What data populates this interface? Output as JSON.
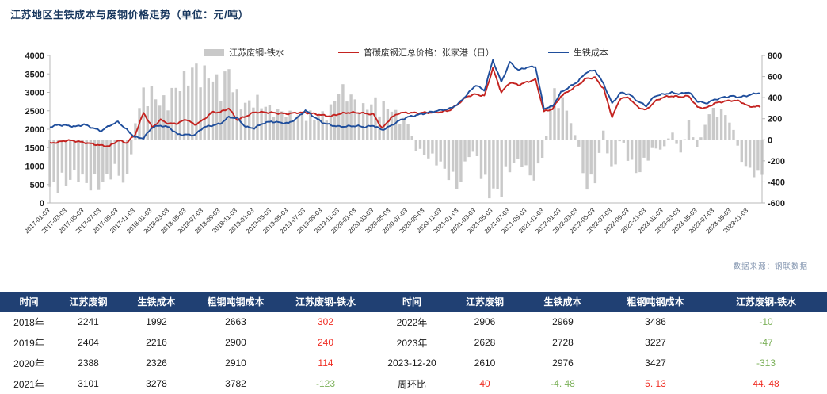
{
  "title": "江苏地区生铁成本与废钢价格走势（单位：元/吨）",
  "source": "数据来源：钢联数据",
  "chart_data": {
    "type": "line+bar",
    "title": "江苏地区生铁成本与废钢价格走势（单位：元/吨）",
    "legend": [
      {
        "label": "江苏废钢-铁水",
        "type": "bar",
        "color": "#C9C9C9",
        "axis": "right"
      },
      {
        "label": "普碳废钢汇总价格：张家港（日）",
        "type": "line",
        "color": "#C42320",
        "axis": "left"
      },
      {
        "label": "生铁成本",
        "type": "line",
        "color": "#1F4E9C",
        "axis": "left"
      }
    ],
    "left_axis": {
      "min": 0,
      "max": 4000,
      "step": 500,
      "ticks": [
        4000,
        3500,
        3000,
        2500,
        2000,
        1500,
        1000,
        500,
        0
      ]
    },
    "right_axis": {
      "min": -600,
      "max": 800,
      "step": 200,
      "ticks": [
        800,
        600,
        400,
        200,
        0,
        -200,
        -400,
        -600
      ]
    },
    "x_labels": [
      "2017-01-03",
      "2017-03-03",
      "2017-05-03",
      "2017-07-03",
      "2017-09-03",
      "2017-11-03",
      "2018-01-03",
      "2018-03-03",
      "2018-05-03",
      "2018-07-03",
      "2018-09-03",
      "2018-11-03",
      "2019-01-03",
      "2019-03-03",
      "2019-05-03",
      "2019-07-03",
      "2019-09-03",
      "2019-11-03",
      "2020-01-03",
      "2020-03-03",
      "2020-05-03",
      "2020-07-03",
      "2020-09-03",
      "2020-11-03",
      "2021-01-03",
      "2021-03-03",
      "2021-05-03",
      "2021-07-03",
      "2021-09-03",
      "2021-11-03",
      "2022-01-03",
      "2022-03-03",
      "2022-05-03",
      "2022-07-03",
      "2022-09-03",
      "2022-11-03",
      "2023-01-03",
      "2023-03-03",
      "2023-05-03",
      "2023-07-03",
      "2023-09-03",
      "2023-11-03"
    ],
    "months_start": "2017-01",
    "series": {
      "spread": {
        "name": "江苏废钢-铁水",
        "axis": "right",
        "color": "#C9C9C9",
        "monthly": [
          -430,
          -410,
          -370,
          -320,
          -360,
          -430,
          -400,
          -310,
          -280,
          -420,
          150,
          420,
          420,
          320,
          380,
          480,
          560,
          640,
          600,
          560,
          480,
          620,
          380,
          300,
          380,
          300,
          280,
          250,
          230,
          210,
          230,
          210,
          230,
          280,
          460,
          420,
          320,
          280,
          340,
          300,
          280,
          200,
          150,
          -80,
          -130,
          -180,
          -220,
          -350,
          -430,
          -150,
          -100,
          -430,
          -470,
          -450,
          -250,
          -180,
          -280,
          -350,
          -100,
          430,
          380,
          200,
          -50,
          -430,
          -350,
          100,
          -380,
          50,
          -200,
          -300,
          -180,
          -60,
          -100,
          80,
          -120,
          150,
          -100,
          180,
          280,
          250,
          150,
          -150,
          -280,
          -313
        ]
      },
      "scrap_price": {
        "name": "普碳废钢汇总价格：张家港（日）",
        "axis": "left",
        "color": "#C42320",
        "monthly": [
          1620,
          1650,
          1700,
          1680,
          1640,
          1600,
          1560,
          1540,
          1700,
          1630,
          1850,
          2450,
          2050,
          2250,
          2150,
          2160,
          2270,
          2120,
          2250,
          2460,
          2460,
          2570,
          2250,
          2350,
          2460,
          2460,
          2450,
          2430,
          2420,
          2450,
          2450,
          2420,
          2380,
          2350,
          2420,
          2450,
          2450,
          2430,
          2400,
          2020,
          2300,
          2440,
          2450,
          2440,
          2450,
          2450,
          2470,
          2520,
          2700,
          2890,
          2950,
          2900,
          3650,
          3000,
          3270,
          3200,
          3280,
          3350,
          2480,
          2550,
          2900,
          3050,
          3200,
          3380,
          3400,
          3100,
          2330,
          2850,
          2850,
          2600,
          2520,
          2750,
          2870,
          2900,
          2880,
          2900,
          2600,
          2570,
          2700,
          2750,
          2780,
          2760,
          2620,
          2612
        ]
      },
      "pig_iron_cost": {
        "name": "生铁成本",
        "axis": "left",
        "color": "#1F4E9C",
        "monthly": [
          2060,
          2120,
          2100,
          2070,
          2130,
          2040,
          1950,
          2100,
          2200,
          1990,
          1780,
          1760,
          2050,
          2100,
          2050,
          1860,
          1850,
          1840,
          2050,
          2100,
          2150,
          2330,
          2300,
          2060,
          2030,
          2160,
          2210,
          2180,
          2160,
          2300,
          2510,
          2340,
          2180,
          2110,
          2070,
          2080,
          2090,
          2060,
          2100,
          1980,
          2090,
          2230,
          2330,
          2380,
          2430,
          2480,
          2520,
          2560,
          2700,
          2950,
          3200,
          3050,
          3870,
          3280,
          3820,
          3600,
          3680,
          3700,
          2560,
          2620,
          3000,
          3150,
          3300,
          3550,
          3600,
          3230,
          2700,
          2990,
          2950,
          2760,
          2630,
          2900,
          2950,
          2990,
          2960,
          3010,
          2760,
          2700,
          2800,
          2860,
          2900,
          2870,
          2920,
          2980
        ]
      }
    }
  },
  "table": {
    "headers": [
      "时间",
      "江苏废钢",
      "生铁成本",
      "粗钢吨钢成本",
      "江苏废钢-铁水",
      "时间",
      "江苏废钢",
      "生铁成本",
      "粗钢吨钢成本",
      "江苏废钢-铁水"
    ],
    "rows": [
      [
        [
          "2018年",
          ""
        ],
        [
          "2241",
          ""
        ],
        [
          "1992",
          ""
        ],
        [
          "2663",
          ""
        ],
        [
          "302",
          "red"
        ],
        [
          "2022年",
          ""
        ],
        [
          "2906",
          ""
        ],
        [
          "2969",
          ""
        ],
        [
          "3486",
          ""
        ],
        [
          "-10",
          "green"
        ]
      ],
      [
        [
          "2019年",
          ""
        ],
        [
          "2404",
          ""
        ],
        [
          "2216",
          ""
        ],
        [
          "2900",
          ""
        ],
        [
          "240",
          "red"
        ],
        [
          "2023年",
          ""
        ],
        [
          "2628",
          ""
        ],
        [
          "2728",
          ""
        ],
        [
          "3227",
          ""
        ],
        [
          "-47",
          "green"
        ]
      ],
      [
        [
          "2020年",
          ""
        ],
        [
          "2388",
          ""
        ],
        [
          "2326",
          ""
        ],
        [
          "2910",
          ""
        ],
        [
          "114",
          "red"
        ],
        [
          "2023-12-20",
          ""
        ],
        [
          "2610",
          ""
        ],
        [
          "2976",
          ""
        ],
        [
          "3427",
          ""
        ],
        [
          "-313",
          "green"
        ]
      ],
      [
        [
          "2021年",
          ""
        ],
        [
          "3101",
          ""
        ],
        [
          "3278",
          ""
        ],
        [
          "3782",
          ""
        ],
        [
          "-123",
          "green"
        ],
        [
          "周环比",
          ""
        ],
        [
          "40",
          "red"
        ],
        [
          "-4. 48",
          "green"
        ],
        [
          "5. 13",
          "red"
        ],
        [
          "44. 48",
          "red"
        ]
      ]
    ]
  }
}
